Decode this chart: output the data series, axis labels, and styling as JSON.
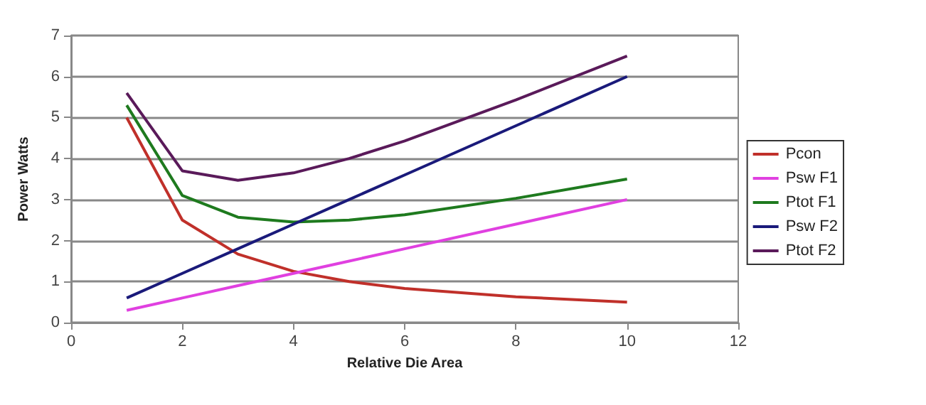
{
  "chart_data": {
    "type": "line",
    "xlabel": "Relative Die Area",
    "ylabel": "Power Watts",
    "x": [
      1,
      2,
      3,
      4,
      5,
      6,
      8,
      10
    ],
    "series": [
      {
        "name": "Pcon",
        "color": "#c0302a",
        "values": [
          5,
          2.5,
          1.67,
          1.25,
          1,
          0.83,
          0.63,
          0.5
        ]
      },
      {
        "name": "Psw F1",
        "color": "#e040e0",
        "values": [
          0.3,
          0.6,
          0.9,
          1.2,
          1.5,
          1.8,
          2.4,
          3
        ]
      },
      {
        "name": "Ptot F1",
        "color": "#1e7a1e",
        "values": [
          5.3,
          3.1,
          2.57,
          2.45,
          2.5,
          2.63,
          3.03,
          3.5
        ]
      },
      {
        "name": "Psw F2",
        "color": "#1a1a7a",
        "values": [
          0.6,
          1.2,
          1.8,
          2.4,
          3,
          3.6,
          4.8,
          6
        ]
      },
      {
        "name": "Ptot F2",
        "color": "#5a1a5a",
        "values": [
          5.6,
          3.7,
          3.47,
          3.65,
          4,
          4.43,
          5.43,
          6.5
        ]
      }
    ],
    "xlim": [
      0,
      12
    ],
    "xticks": [
      0,
      2,
      4,
      6,
      8,
      10,
      12
    ],
    "ylim": [
      0,
      7
    ],
    "yticks": [
      0,
      1,
      2,
      3,
      4,
      5,
      6,
      7
    ],
    "grid": "y",
    "legend": "right",
    "marker": "none",
    "line_style": "solid"
  }
}
